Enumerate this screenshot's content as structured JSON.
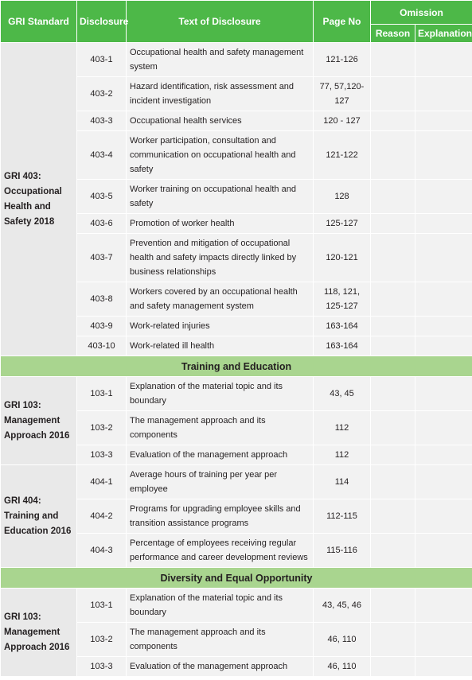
{
  "header": {
    "gri_standard": "GRI Standard",
    "disclosure": "Disclosure",
    "text": "Text of Disclosure",
    "page_no": "Page No",
    "omission": "Omission",
    "reason": "Reason",
    "explanation": "Explanation"
  },
  "blocks": [
    {
      "groups": [
        {
          "standard": "GRI 403: Occupational Health and Safety 2018",
          "rows": [
            [
              "403-1",
              "Occupational health and safety management system",
              "121-126"
            ],
            [
              "403-2",
              "Hazard identification, risk assessment and incident investigation",
              "77, 57,120-127"
            ],
            [
              "403-3",
              "Occupational health services",
              "120 - 127"
            ],
            [
              "403-4",
              "Worker participation, consultation and communication on occupational health and safety",
              "121-122"
            ],
            [
              "403-5",
              "Worker training on occupational health and safety",
              "128"
            ],
            [
              "403-6",
              "Promotion of worker health",
              "125-127"
            ],
            [
              "403-7",
              "Prevention and mitigation of occupational health and safety impacts directly linked by business relationships",
              "120-121"
            ],
            [
              "403-8",
              "Workers covered by an occupational health and safety management system",
              "118, 121, 125-127"
            ],
            [
              "403-9",
              "Work-related injuries",
              "163-164"
            ],
            [
              "403-10",
              "Work-related ill health",
              "163-164"
            ]
          ]
        }
      ]
    },
    {
      "heading": "Training and Education",
      "groups": [
        {
          "standard": "GRI 103: Management Approach 2016",
          "rows": [
            [
              "103-1",
              "Explanation of the material topic and its boundary",
              "43, 45"
            ],
            [
              "103-2",
              "The management approach and its components",
              "112"
            ],
            [
              "103-3",
              "Evaluation of the management approach",
              "112"
            ]
          ]
        },
        {
          "standard": "GRI 404: Training and Education 2016",
          "rows": [
            [
              "404-1",
              "Average hours of training per year per employee",
              "114"
            ],
            [
              "404-2",
              "Programs for upgrading employee skills and transition assistance programs",
              "112-115"
            ],
            [
              "404-3",
              "Percentage of employees receiving regular performance and career development reviews",
              "115-116"
            ]
          ]
        }
      ]
    },
    {
      "heading": "Diversity and Equal Opportunity",
      "groups": [
        {
          "standard": "GRI 103: Management Approach 2016",
          "rows": [
            [
              "103-1",
              "Explanation of the material topic and its boundary",
              "43, 45, 46"
            ],
            [
              "103-2",
              "The management approach and its components",
              "46, 110"
            ],
            [
              "103-3",
              "Evaluation of the management approach",
              "46, 110"
            ]
          ]
        }
      ]
    }
  ]
}
